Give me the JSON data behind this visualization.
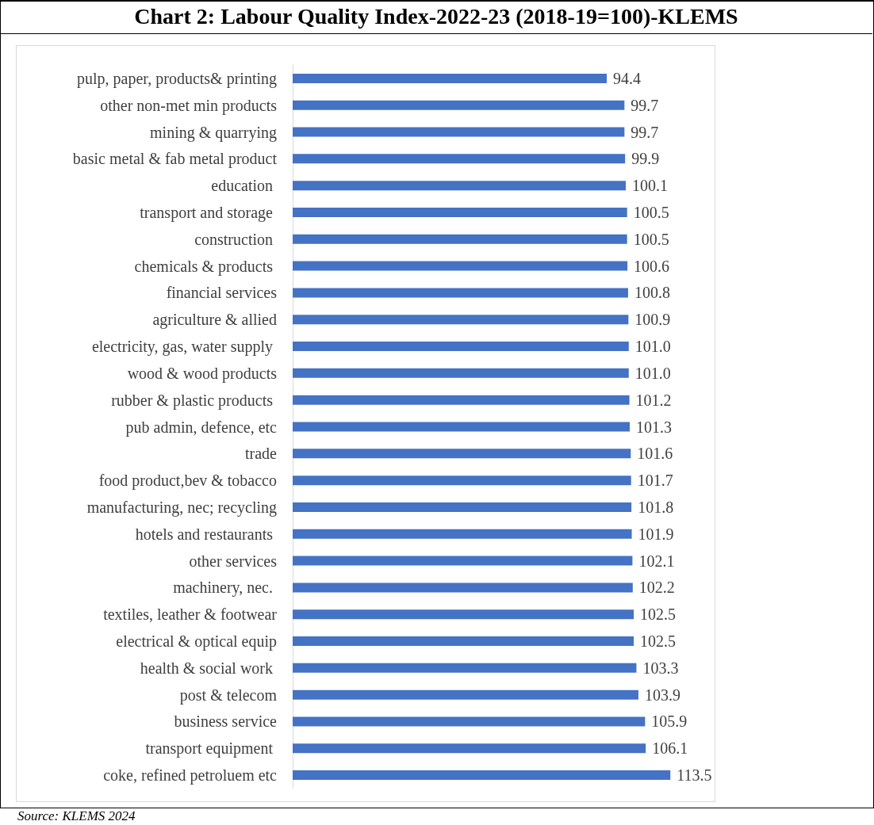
{
  "chart_data": {
    "type": "bar",
    "orientation": "horizontal",
    "title": "Chart 2: Labour Quality Index-2022-23 (2018-19=100)-KLEMS",
    "categories": [
      "pulp, paper, products& printing",
      "other non-met min products",
      "mining & quarrying",
      "basic metal & fab metal product",
      "education ",
      "transport and storage ",
      "construction ",
      "chemicals & products ",
      "financial services",
      "agriculture & allied",
      "electricity, gas, water supply ",
      "wood & wood products",
      "rubber & plastic products ",
      "pub admin, defence, etc",
      "trade",
      "food product,bev & tobacco",
      "manufacturing, nec; recycling",
      "hotels and restaurants ",
      "other services",
      "machinery, nec. ",
      "textiles, leather & footwear",
      "electrical & optical equip",
      "health & social work ",
      "post & telecom",
      "business service",
      "transport equipment ",
      "coke, refined petroluem etc"
    ],
    "values": [
      94.4,
      99.7,
      99.7,
      99.9,
      100.1,
      100.5,
      100.5,
      100.6,
      100.8,
      100.9,
      101.0,
      101.0,
      101.2,
      101.3,
      101.6,
      101.7,
      101.8,
      101.9,
      102.1,
      102.2,
      102.5,
      102.5,
      103.3,
      103.9,
      105.9,
      106.1,
      113.5
    ],
    "value_labels": [
      "94.4",
      "99.7",
      "99.7",
      "99.9",
      "100.1",
      "100.5",
      "100.5",
      "100.6",
      "100.8",
      "100.9",
      "101.0",
      "101.0",
      "101.2",
      "101.3",
      "101.6",
      "101.7",
      "101.8",
      "101.9",
      "102.1",
      "102.2",
      "102.5",
      "102.5",
      "103.3",
      "103.9",
      "105.9",
      "106.1",
      "113.5"
    ],
    "color": "#4472c4",
    "annotations": [
      "Source: KLEMS 2024"
    ]
  }
}
